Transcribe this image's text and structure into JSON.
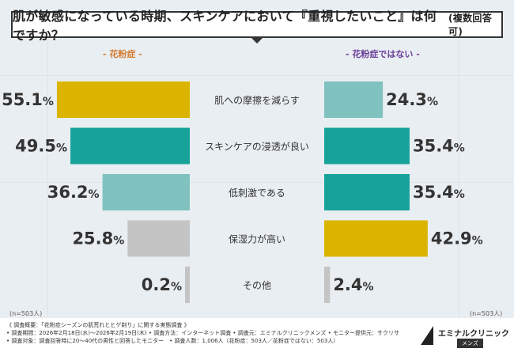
{
  "title": {
    "main": "肌が敏感になっている時期、スキンケアにおいて『重視したいこと』は何ですか？",
    "sub": "(複数回答可)"
  },
  "colors": {
    "gold": "#dbb400",
    "teal": "#17a39a",
    "lightTeal": "#7fc2bf",
    "gray": "#c4c4c4"
  },
  "segments": {
    "left": "- 花粉症 -",
    "right": "- 花粉症ではない -"
  },
  "sample": {
    "left": "(n=503人)",
    "right": "(n=503人)"
  },
  "chart_data": {
    "type": "bar",
    "categories": [
      "肌への摩擦を減らす",
      "スキンケアの浸透が良い",
      "低刺激である",
      "保湿力が高い",
      "その他"
    ],
    "series": [
      {
        "name": "花粉症",
        "values": [
          55.1,
          49.5,
          36.2,
          25.8,
          0.2
        ],
        "colors": [
          "#dbb400",
          "#17a39a",
          "#7fc2bf",
          "#c4c4c4",
          "#c4c4c4"
        ]
      },
      {
        "name": "花粉症ではない",
        "values": [
          24.3,
          35.4,
          35.4,
          42.9,
          2.4
        ],
        "colors": [
          "#7fc2bf",
          "#17a39a",
          "#17a39a",
          "#dbb400",
          "#c4c4c4"
        ]
      }
    ],
    "unit": "%"
  },
  "notes": [
    "《 調査概要：「花粉症シーズンの肌荒れとヒゲ剃り」に関する実態調査 》",
    "• 調査期間：2026年2月18日(水)～2026年2月19日(木) • 調査方法：インターネット調査 • 調査元：エミナルクリニックメンズ • モニター提供元：サクリサ",
    "• 調査対象：調査回答時に20～40代の男性と回答したモニター　• 調査人数：1,006人（花粉症：503人／花粉症ではない：503人）"
  ],
  "logo": {
    "brand": "エミナルクリニック",
    "sub": "メンズ"
  }
}
